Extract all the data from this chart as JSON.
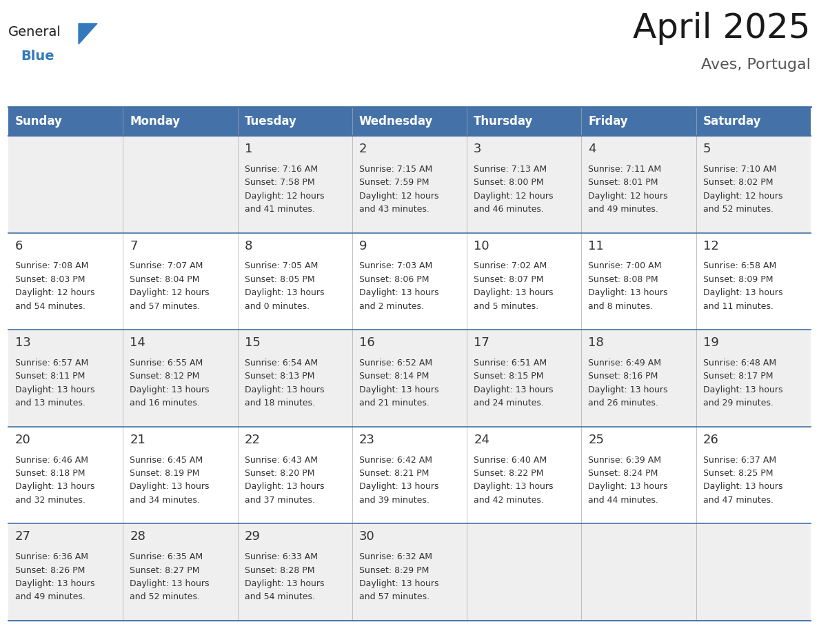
{
  "title": "April 2025",
  "subtitle": "Aves, Portugal",
  "days_of_week": [
    "Sunday",
    "Monday",
    "Tuesday",
    "Wednesday",
    "Thursday",
    "Friday",
    "Saturday"
  ],
  "header_bg": "#4472a8",
  "header_text_color": "#ffffff",
  "row_bg_odd": "#efefef",
  "row_bg_even": "#ffffff",
  "cell_text_color": "#333333",
  "day_num_color": "#333333",
  "border_color": "#4472a8",
  "logo_general_color": "#1a1a1a",
  "logo_blue_color": "#3479bc",
  "title_fontsize": 36,
  "subtitle_fontsize": 16,
  "header_fontsize": 12,
  "day_num_fontsize": 13,
  "cell_fontsize": 9,
  "calendar_data": [
    {
      "day": 1,
      "col": 2,
      "row": 0,
      "sunrise": "7:16 AM",
      "sunset": "7:58 PM",
      "daylight_line1": "Daylight: 12 hours",
      "daylight_line2": "and 41 minutes."
    },
    {
      "day": 2,
      "col": 3,
      "row": 0,
      "sunrise": "7:15 AM",
      "sunset": "7:59 PM",
      "daylight_line1": "Daylight: 12 hours",
      "daylight_line2": "and 43 minutes."
    },
    {
      "day": 3,
      "col": 4,
      "row": 0,
      "sunrise": "7:13 AM",
      "sunset": "8:00 PM",
      "daylight_line1": "Daylight: 12 hours",
      "daylight_line2": "and 46 minutes."
    },
    {
      "day": 4,
      "col": 5,
      "row": 0,
      "sunrise": "7:11 AM",
      "sunset": "8:01 PM",
      "daylight_line1": "Daylight: 12 hours",
      "daylight_line2": "and 49 minutes."
    },
    {
      "day": 5,
      "col": 6,
      "row": 0,
      "sunrise": "7:10 AM",
      "sunset": "8:02 PM",
      "daylight_line1": "Daylight: 12 hours",
      "daylight_line2": "and 52 minutes."
    },
    {
      "day": 6,
      "col": 0,
      "row": 1,
      "sunrise": "7:08 AM",
      "sunset": "8:03 PM",
      "daylight_line1": "Daylight: 12 hours",
      "daylight_line2": "and 54 minutes."
    },
    {
      "day": 7,
      "col": 1,
      "row": 1,
      "sunrise": "7:07 AM",
      "sunset": "8:04 PM",
      "daylight_line1": "Daylight: 12 hours",
      "daylight_line2": "and 57 minutes."
    },
    {
      "day": 8,
      "col": 2,
      "row": 1,
      "sunrise": "7:05 AM",
      "sunset": "8:05 PM",
      "daylight_line1": "Daylight: 13 hours",
      "daylight_line2": "and 0 minutes."
    },
    {
      "day": 9,
      "col": 3,
      "row": 1,
      "sunrise": "7:03 AM",
      "sunset": "8:06 PM",
      "daylight_line1": "Daylight: 13 hours",
      "daylight_line2": "and 2 minutes."
    },
    {
      "day": 10,
      "col": 4,
      "row": 1,
      "sunrise": "7:02 AM",
      "sunset": "8:07 PM",
      "daylight_line1": "Daylight: 13 hours",
      "daylight_line2": "and 5 minutes."
    },
    {
      "day": 11,
      "col": 5,
      "row": 1,
      "sunrise": "7:00 AM",
      "sunset": "8:08 PM",
      "daylight_line1": "Daylight: 13 hours",
      "daylight_line2": "and 8 minutes."
    },
    {
      "day": 12,
      "col": 6,
      "row": 1,
      "sunrise": "6:58 AM",
      "sunset": "8:09 PM",
      "daylight_line1": "Daylight: 13 hours",
      "daylight_line2": "and 11 minutes."
    },
    {
      "day": 13,
      "col": 0,
      "row": 2,
      "sunrise": "6:57 AM",
      "sunset": "8:11 PM",
      "daylight_line1": "Daylight: 13 hours",
      "daylight_line2": "and 13 minutes."
    },
    {
      "day": 14,
      "col": 1,
      "row": 2,
      "sunrise": "6:55 AM",
      "sunset": "8:12 PM",
      "daylight_line1": "Daylight: 13 hours",
      "daylight_line2": "and 16 minutes."
    },
    {
      "day": 15,
      "col": 2,
      "row": 2,
      "sunrise": "6:54 AM",
      "sunset": "8:13 PM",
      "daylight_line1": "Daylight: 13 hours",
      "daylight_line2": "and 18 minutes."
    },
    {
      "day": 16,
      "col": 3,
      "row": 2,
      "sunrise": "6:52 AM",
      "sunset": "8:14 PM",
      "daylight_line1": "Daylight: 13 hours",
      "daylight_line2": "and 21 minutes."
    },
    {
      "day": 17,
      "col": 4,
      "row": 2,
      "sunrise": "6:51 AM",
      "sunset": "8:15 PM",
      "daylight_line1": "Daylight: 13 hours",
      "daylight_line2": "and 24 minutes."
    },
    {
      "day": 18,
      "col": 5,
      "row": 2,
      "sunrise": "6:49 AM",
      "sunset": "8:16 PM",
      "daylight_line1": "Daylight: 13 hours",
      "daylight_line2": "and 26 minutes."
    },
    {
      "day": 19,
      "col": 6,
      "row": 2,
      "sunrise": "6:48 AM",
      "sunset": "8:17 PM",
      "daylight_line1": "Daylight: 13 hours",
      "daylight_line2": "and 29 minutes."
    },
    {
      "day": 20,
      "col": 0,
      "row": 3,
      "sunrise": "6:46 AM",
      "sunset": "8:18 PM",
      "daylight_line1": "Daylight: 13 hours",
      "daylight_line2": "and 32 minutes."
    },
    {
      "day": 21,
      "col": 1,
      "row": 3,
      "sunrise": "6:45 AM",
      "sunset": "8:19 PM",
      "daylight_line1": "Daylight: 13 hours",
      "daylight_line2": "and 34 minutes."
    },
    {
      "day": 22,
      "col": 2,
      "row": 3,
      "sunrise": "6:43 AM",
      "sunset": "8:20 PM",
      "daylight_line1": "Daylight: 13 hours",
      "daylight_line2": "and 37 minutes."
    },
    {
      "day": 23,
      "col": 3,
      "row": 3,
      "sunrise": "6:42 AM",
      "sunset": "8:21 PM",
      "daylight_line1": "Daylight: 13 hours",
      "daylight_line2": "and 39 minutes."
    },
    {
      "day": 24,
      "col": 4,
      "row": 3,
      "sunrise": "6:40 AM",
      "sunset": "8:22 PM",
      "daylight_line1": "Daylight: 13 hours",
      "daylight_line2": "and 42 minutes."
    },
    {
      "day": 25,
      "col": 5,
      "row": 3,
      "sunrise": "6:39 AM",
      "sunset": "8:24 PM",
      "daylight_line1": "Daylight: 13 hours",
      "daylight_line2": "and 44 minutes."
    },
    {
      "day": 26,
      "col": 6,
      "row": 3,
      "sunrise": "6:37 AM",
      "sunset": "8:25 PM",
      "daylight_line1": "Daylight: 13 hours",
      "daylight_line2": "and 47 minutes."
    },
    {
      "day": 27,
      "col": 0,
      "row": 4,
      "sunrise": "6:36 AM",
      "sunset": "8:26 PM",
      "daylight_line1": "Daylight: 13 hours",
      "daylight_line2": "and 49 minutes."
    },
    {
      "day": 28,
      "col": 1,
      "row": 4,
      "sunrise": "6:35 AM",
      "sunset": "8:27 PM",
      "daylight_line1": "Daylight: 13 hours",
      "daylight_line2": "and 52 minutes."
    },
    {
      "day": 29,
      "col": 2,
      "row": 4,
      "sunrise": "6:33 AM",
      "sunset": "8:28 PM",
      "daylight_line1": "Daylight: 13 hours",
      "daylight_line2": "and 54 minutes."
    },
    {
      "day": 30,
      "col": 3,
      "row": 4,
      "sunrise": "6:32 AM",
      "sunset": "8:29 PM",
      "daylight_line1": "Daylight: 13 hours",
      "daylight_line2": "and 57 minutes."
    }
  ]
}
